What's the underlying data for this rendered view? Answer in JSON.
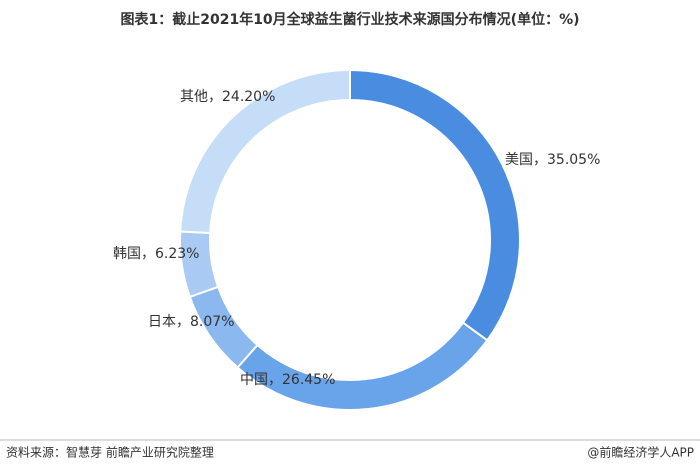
{
  "chart_data": {
    "type": "donut",
    "title": "图表1：截止2021年10月全球益生菌行业技术来源国分布情况(单位：%)",
    "categories": [
      "美国",
      "中国",
      "日本",
      "韩国",
      "其他"
    ],
    "values": [
      35.05,
      26.45,
      8.07,
      6.23,
      24.2
    ],
    "value_labels": [
      "35.05%",
      "26.45%",
      "8.07%",
      "6.23%",
      "24.20%"
    ],
    "label_separator": "，",
    "colors": [
      "#4a8de0",
      "#69a3ea",
      "#8bb8ef",
      "#a9cbf3",
      "#c6ddf8"
    ],
    "source": "资料来源：智慧芽 前瞻产业研究院整理",
    "credit": "@前瞻经济学人APP"
  }
}
